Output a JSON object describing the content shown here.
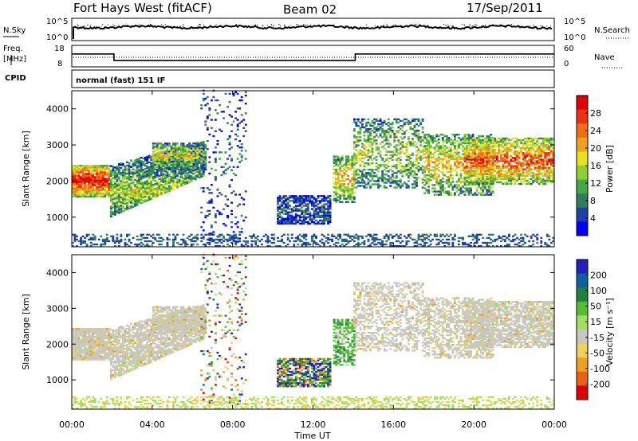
{
  "chart_data": {
    "type": "heatmap",
    "title": {
      "station": "Fort Hays West (fitACF)",
      "beam": "Beam 02",
      "date": "17/Sep/2011"
    },
    "summary_panels": {
      "noise": {
        "left_label": "N.Sky",
        "left_ticks": [
          "10^5",
          "10^0"
        ],
        "right_label": "N.Search",
        "right_ticks": [
          "10^5",
          "10^0"
        ]
      },
      "freq": {
        "left_label_1": "Freq.",
        "left_label_2": "[MHz]",
        "left_ticks": [
          "18",
          "8"
        ],
        "right_label": "Nave",
        "right_ticks": [
          "60",
          "0"
        ],
        "freq_profile": [
          {
            "t": 0.0,
            "mhz": 14
          },
          {
            "t": 2.1,
            "mhz": 14
          },
          {
            "t": 2.1,
            "mhz": 11
          },
          {
            "t": 14.1,
            "mhz": 11
          },
          {
            "t": 14.1,
            "mhz": 14
          },
          {
            "t": 24.0,
            "mhz": 14
          }
        ]
      },
      "cpid": {
        "label": "CPID",
        "text": "normal (fast) 151 IF"
      }
    },
    "x": {
      "label": "Time UT",
      "range_hours": [
        0,
        24
      ],
      "ticks": [
        "00:00",
        "04:00",
        "08:00",
        "12:00",
        "16:00",
        "20:00",
        "00:00"
      ]
    },
    "y": {
      "label": "Slant Range [km]",
      "range_km": [
        180,
        4500
      ],
      "ticks": [
        "1000",
        "2000",
        "3000",
        "4000"
      ]
    },
    "power_panel": {
      "colorbar_label": "Power [dB]",
      "colorbar_ticks": [
        "4",
        "8",
        "12",
        "16",
        "20",
        "24",
        "28"
      ],
      "colorscale": [
        "#0000ff",
        "#1f3fa8",
        "#2e7d5e",
        "#44a944",
        "#8fd030",
        "#e8e020",
        "#f0a020",
        "#f07010",
        "#f03010",
        "#e00000"
      ]
    },
    "velocity_panel": {
      "colorbar_label": "Velocity [m s⁻¹]",
      "colorbar_ticks": [
        "200",
        "100",
        "50",
        "15",
        "-15",
        "-50",
        "-100",
        "-200"
      ],
      "colorscale": [
        "#2020c0",
        "#1060a0",
        "#208040",
        "#50c030",
        "#a0e060",
        "#c8c8c0",
        "#f0d060",
        "#f0a020",
        "#f06010",
        "#e00000"
      ]
    },
    "scatter_regions": [
      {
        "t0": 0.0,
        "t1": 1.9,
        "r0": 1550,
        "r1": 2450,
        "powerLevel": 0.7,
        "velMode": "gray",
        "dens": 0.95
      },
      {
        "t0": 1.9,
        "t1": 6.5,
        "r0": 1000,
        "r1": 2400,
        "powerLevel": 0.35,
        "velMode": "gray",
        "dens": 0.8,
        "slope": 450
      },
      {
        "t0": 4.0,
        "t1": 6.6,
        "r0": 2300,
        "r1": 3050,
        "powerLevel": 0.4,
        "velMode": "gray",
        "dens": 0.75
      },
      {
        "t0": 6.4,
        "t1": 8.6,
        "r0": 300,
        "r1": 4500,
        "powerLevel": 0.15,
        "velMode": "mixed",
        "dens": 0.12
      },
      {
        "t0": 10.2,
        "t1": 12.8,
        "r0": 800,
        "r1": 1600,
        "powerLevel": 0.15,
        "velMode": "blue-green-orange",
        "dens": 0.7
      },
      {
        "t0": 13.0,
        "t1": 14.0,
        "r0": 1400,
        "r1": 2700,
        "powerLevel": 0.45,
        "velMode": "green",
        "dens": 0.6
      },
      {
        "t0": 14.0,
        "t1": 17.5,
        "r0": 1800,
        "r1": 3700,
        "powerLevel": 0.35,
        "velMode": "gray",
        "dens": 0.45
      },
      {
        "t0": 17.5,
        "t1": 21.0,
        "r0": 1600,
        "r1": 3300,
        "powerLevel": 0.45,
        "velMode": "gray",
        "dens": 0.5
      },
      {
        "t0": 19.5,
        "t1": 24.0,
        "r0": 1900,
        "r1": 3200,
        "powerLevel": 0.6,
        "velMode": "gray",
        "dens": 0.75
      }
    ],
    "ground_band_km": [
      180,
      500
    ]
  }
}
